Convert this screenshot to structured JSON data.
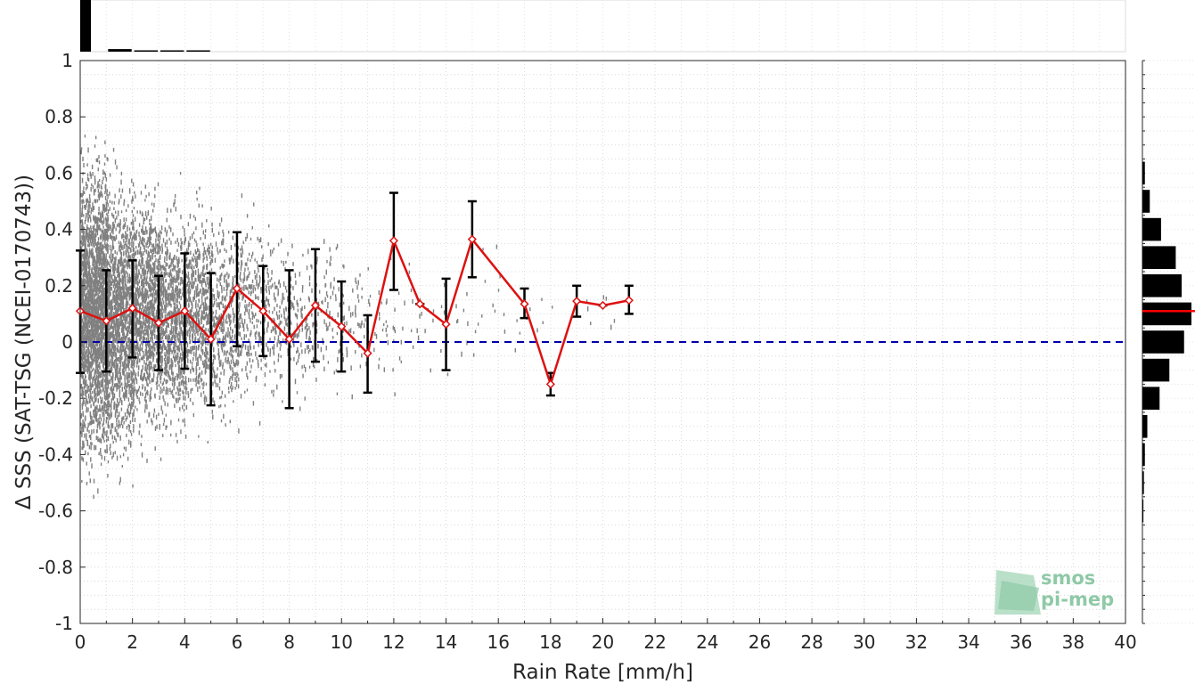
{
  "chart_data": {
    "type": "scatter",
    "xlabel": "Rain Rate [mm/h]",
    "ylabel": "Δ SSS (SAT-TSG (NCEI-0170743))",
    "xlim": [
      0,
      40
    ],
    "ylim": [
      -1,
      1
    ],
    "x_ticks": [
      "0",
      "2",
      "4",
      "6",
      "8",
      "10",
      "12",
      "14",
      "16",
      "18",
      "20",
      "22",
      "24",
      "26",
      "28",
      "30",
      "32",
      "34",
      "36",
      "38",
      "40"
    ],
    "y_ticks": [
      "1",
      "0.8",
      "0.6",
      "0.4",
      "0.2",
      "0",
      "-0.2",
      "-0.4",
      "-0.6",
      "-0.8",
      "-1"
    ],
    "grid": true,
    "reference_line": {
      "y": 0,
      "style": "dashed",
      "color": "#0000aa"
    },
    "colors": {
      "scatter": "#808080",
      "mean_line": "#dd1111",
      "error_bars": "#000000",
      "histogram": "#000000",
      "histogram_mean": "#ff0000"
    },
    "series": [
      {
        "x": [
          0,
          1,
          2,
          3,
          4,
          5,
          6,
          7,
          8,
          9,
          10,
          11,
          12,
          13,
          14,
          15,
          17,
          18,
          19,
          20,
          21
        ],
        "mean": [
          0.11,
          0.075,
          0.12,
          0.068,
          0.11,
          0.01,
          0.19,
          0.11,
          0.01,
          0.13,
          0.055,
          -0.04,
          0.36,
          0.135,
          0.063,
          0.365,
          0.135,
          -0.15,
          0.145,
          0.13,
          0.148
        ],
        "lower": [
          -0.11,
          -0.105,
          -0.055,
          -0.1,
          -0.095,
          -0.225,
          -0.015,
          -0.05,
          -0.235,
          -0.07,
          -0.105,
          -0.18,
          0.185,
          0.135,
          -0.1,
          0.23,
          0.085,
          -0.19,
          0.09,
          0.13,
          0.1
        ],
        "upper": [
          0.325,
          0.255,
          0.29,
          0.235,
          0.315,
          0.245,
          0.39,
          0.27,
          0.255,
          0.33,
          0.215,
          0.095,
          0.53,
          0.135,
          0.225,
          0.5,
          0.19,
          -0.11,
          0.2,
          0.13,
          0.2
        ]
      }
    ],
    "histogram_top": {
      "bins": [
        0,
        1,
        2,
        3,
        4
      ],
      "counts": [
        1.0,
        0.05,
        0.02,
        0.01,
        0.01
      ]
    },
    "histogram_right": {
      "bins": [
        0.6,
        0.5,
        0.4,
        0.3,
        0.2,
        0.1,
        0.0,
        -0.1,
        -0.2,
        -0.3,
        -0.4,
        -0.5,
        -0.6
      ],
      "counts": [
        0.05,
        0.15,
        0.38,
        0.68,
        0.8,
        1.0,
        0.85,
        0.55,
        0.35,
        0.1,
        0.05,
        0.03,
        0.02
      ],
      "mean": 0.11
    },
    "logo": {
      "line1": "smos",
      "line2": "pi-mep"
    }
  }
}
